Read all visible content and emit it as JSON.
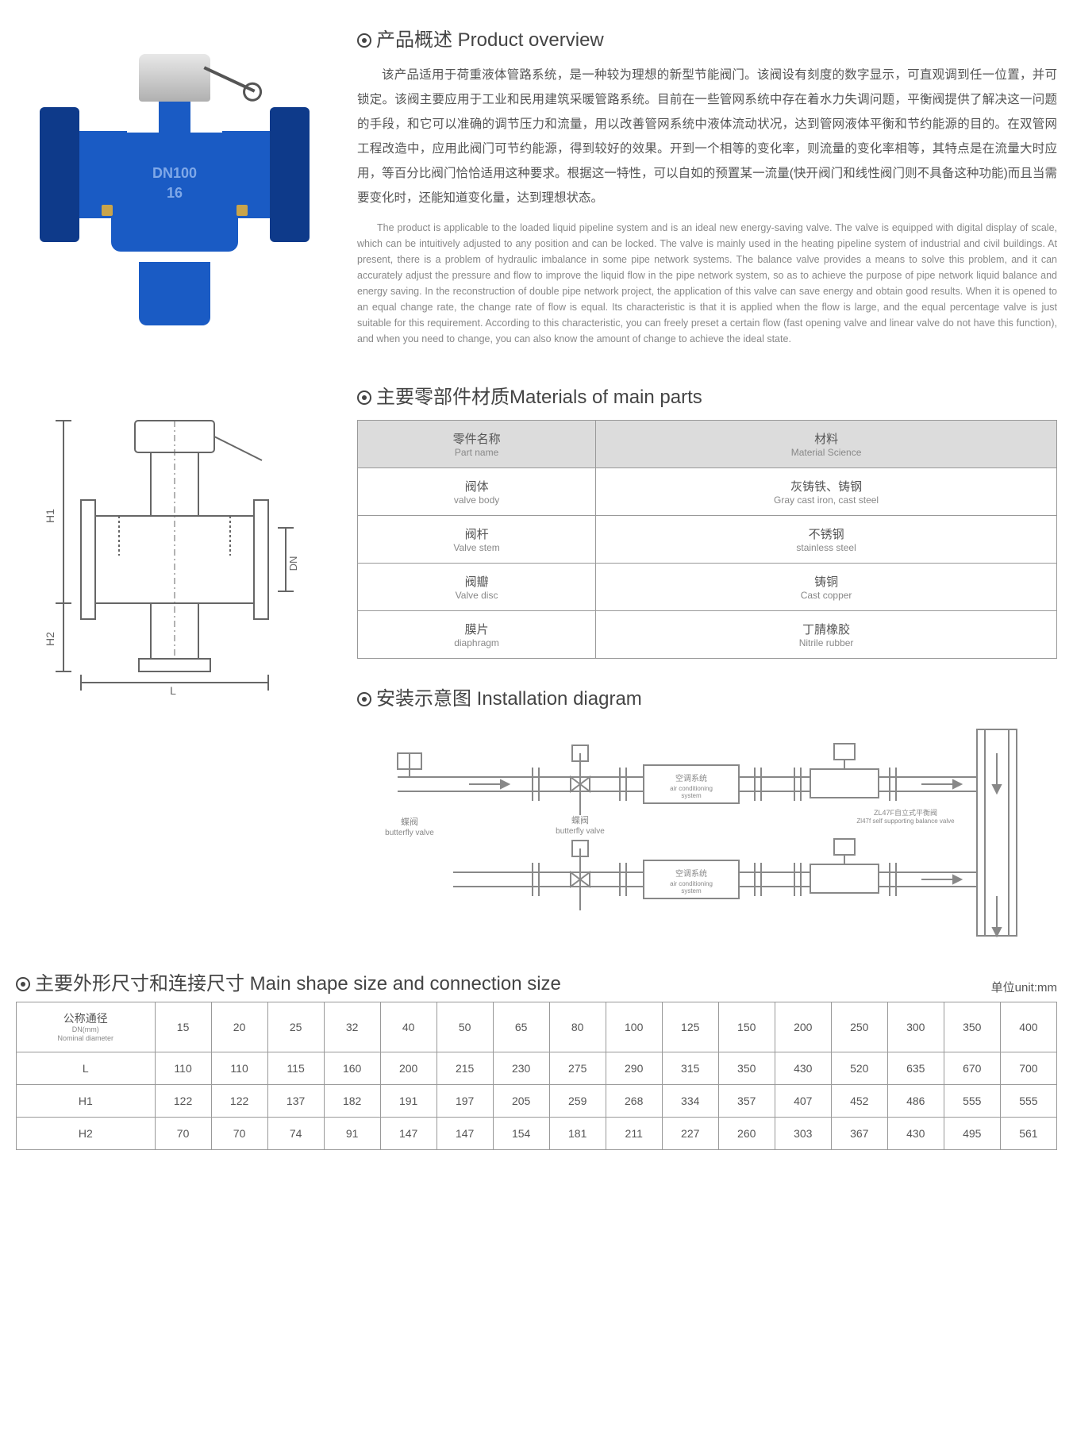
{
  "overview": {
    "title": "产品概述 Product overview",
    "desc_cn": "该产品适用于荷重液体管路系统，是一种较为理想的新型节能阀门。该阀设有刻度的数字显示，可直观调到任一位置，并可锁定。该阀主要应用于工业和民用建筑采暖管路系统。目前在一些管网系统中存在着水力失调问题，平衡阀提供了解决这一问题的手段，和它可以准确的调节压力和流量，用以改善管网系统中液体流动状况，达到管网液体平衡和节约能源的目的。在双管网工程改造中，应用此阀门可节约能源，得到较好的效果。开到一个相等的变化率，则流量的变化率相等，其特点是在流量大时应用，等百分比阀门恰恰适用这种要求。根据这一特性，可以自如的预置某一流量(快开阀门和线性阀门则不具备这种功能)而且当需要变化时，还能知道变化量，达到理想状态。",
    "desc_en": "The product is applicable to the loaded liquid pipeline system and is an ideal new energy-saving valve. The valve is equipped with digital display of scale, which can be intuitively adjusted to any position and can be locked. The valve is mainly used in the heating pipeline system of industrial and civil buildings. At present, there is a problem of hydraulic imbalance in some pipe network systems. The balance valve provides a means to solve this problem, and it can accurately adjust the pressure and flow to improve the liquid flow in the pipe network system, so as to achieve the purpose of pipe network liquid balance and energy saving. In the reconstruction of double pipe network project, the application of this valve can save energy and obtain good results. When it is opened to an equal change rate, the change rate of flow is equal. Its characteristic is that it is applied when the flow is large, and the equal percentage valve is just suitable for this requirement. According to this characteristic, you can freely preset a certain flow (fast opening valve and linear valve do not have this function), and when you need to change, you can also know the amount of change to achieve the ideal state."
  },
  "productMark": {
    "l1": "DN100",
    "l2": "16"
  },
  "materials": {
    "title": "主要零部件材质Materials of main parts",
    "head": {
      "c1cn": "零件名称",
      "c1en": "Part name",
      "c2cn": "材料",
      "c2en": "Material Science"
    },
    "rows": [
      {
        "p_cn": "阀体",
        "p_en": "valve body",
        "m_cn": "灰铸铁、铸钢",
        "m_en": "Gray cast iron, cast steel"
      },
      {
        "p_cn": "阀杆",
        "p_en": "Valve stem",
        "m_cn": "不锈钢",
        "m_en": "stainless steel"
      },
      {
        "p_cn": "阀瓣",
        "p_en": "Valve disc",
        "m_cn": "铸铜",
        "m_en": "Cast copper"
      },
      {
        "p_cn": "膜片",
        "p_en": "diaphragm",
        "m_cn": "丁腈橡胶",
        "m_en": "Nitrile rubber"
      }
    ]
  },
  "install": {
    "title": "安装示意图 Installation diagram",
    "butterfly_cn": "蝶阀",
    "butterfly_en": "butterfly valve",
    "ac_cn": "空调系统",
    "ac_en": "air conditioning system",
    "balance_cn": "ZL47F自立式平衡阀",
    "balance_en": "Zl47f self supporting balance valve"
  },
  "schematicLabels": {
    "L": "L",
    "H1": "H1",
    "H2": "H2",
    "DN": "DN"
  },
  "dimensions": {
    "title": "主要外形尺寸和连接尺寸 Main shape size and connection size",
    "unit": "单位unit:mm",
    "header": {
      "cn": "公称通径",
      "sub": "DN(mm)",
      "en": "Nominal diameter"
    },
    "dn": [
      "15",
      "20",
      "25",
      "32",
      "40",
      "50",
      "65",
      "80",
      "100",
      "125",
      "150",
      "200",
      "250",
      "300",
      "350",
      "400"
    ],
    "rows": [
      {
        "label": "L",
        "vals": [
          "110",
          "110",
          "115",
          "160",
          "200",
          "215",
          "230",
          "275",
          "290",
          "315",
          "350",
          "430",
          "520",
          "635",
          "670",
          "700"
        ]
      },
      {
        "label": "H1",
        "vals": [
          "122",
          "122",
          "137",
          "182",
          "191",
          "197",
          "205",
          "259",
          "268",
          "334",
          "357",
          "407",
          "452",
          "486",
          "555",
          "555"
        ]
      },
      {
        "label": "H2",
        "vals": [
          "70",
          "70",
          "74",
          "91",
          "147",
          "147",
          "154",
          "181",
          "211",
          "227",
          "260",
          "303",
          "367",
          "430",
          "495",
          "561"
        ]
      }
    ]
  },
  "colors": {
    "valve_blue": "#1a5bc4",
    "valve_dark": "#0e3a8a",
    "brass": "#c9a44a",
    "heading": "#444",
    "body": "#555",
    "muted": "#888",
    "border": "#999",
    "th_bg": "#dcdcdc"
  }
}
